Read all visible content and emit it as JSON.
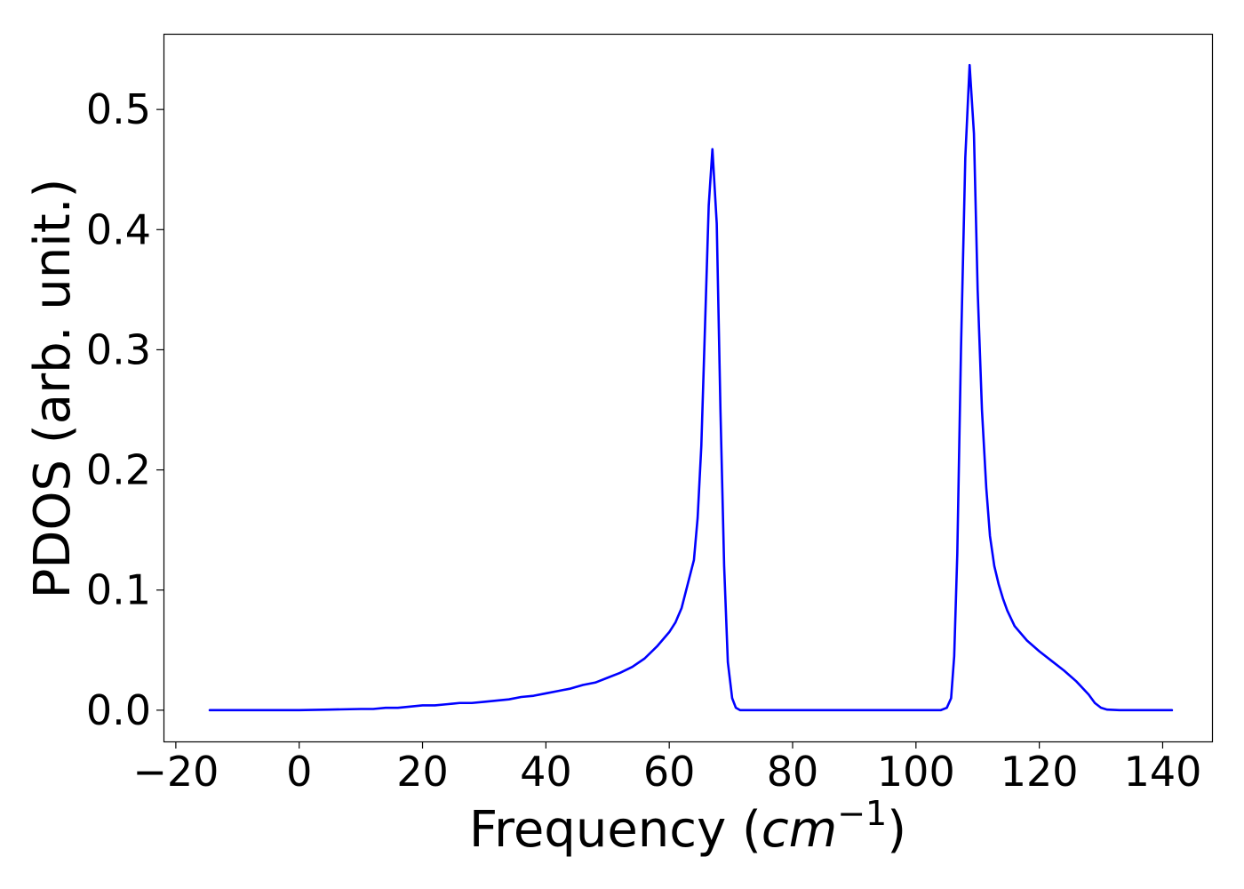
{
  "chart_data": {
    "type": "line",
    "title": "",
    "xlabel_prefix": "Frequency (",
    "xlabel_math": "cm",
    "xlabel_superscript": "−1",
    "xlabel_suffix": ")",
    "ylabel": "PDOS (arb. unit.)",
    "xlim": [
      -22,
      148
    ],
    "ylim": [
      -0.026,
      0.563
    ],
    "xticks": [
      -20,
      0,
      20,
      40,
      60,
      80,
      100,
      120,
      140
    ],
    "xtick_labels": [
      "−20",
      "0",
      "20",
      "40",
      "60",
      "80",
      "100",
      "120",
      "140"
    ],
    "yticks": [
      0.0,
      0.1,
      0.2,
      0.3,
      0.4,
      0.5
    ],
    "ytick_labels": [
      "0.0",
      "0.1",
      "0.2",
      "0.3",
      "0.4",
      "0.5"
    ],
    "grid": false,
    "legend": "none",
    "series": [
      {
        "color": "#0000ff",
        "x": [
          -14.5,
          -5,
          0,
          5,
          10,
          12,
          14,
          16,
          18,
          20,
          22,
          24,
          26,
          28,
          30,
          32,
          34,
          36,
          38,
          40,
          42,
          44,
          46,
          48,
          50,
          52,
          54,
          56,
          58,
          60,
          61,
          62,
          63,
          64,
          64.6,
          65.2,
          65.8,
          66.4,
          67.0,
          67.7,
          68.3,
          68.9,
          69.5,
          70.2,
          70.8,
          71.5,
          72.5,
          75,
          80,
          90,
          100,
          104,
          105,
          105.7,
          106.2,
          106.7,
          107.3,
          108.0,
          108.7,
          109.4,
          110.0,
          110.7,
          111.4,
          112.0,
          112.7,
          113.4,
          114.1,
          114.8,
          116,
          118,
          120,
          122,
          124,
          126,
          128,
          129,
          130,
          131,
          133,
          136,
          141.5
        ],
        "y": [
          0.0,
          0.0,
          0.0,
          0.0005,
          0.001,
          0.001,
          0.002,
          0.002,
          0.003,
          0.004,
          0.004,
          0.005,
          0.006,
          0.006,
          0.007,
          0.008,
          0.009,
          0.011,
          0.012,
          0.014,
          0.016,
          0.018,
          0.021,
          0.023,
          0.027,
          0.031,
          0.036,
          0.043,
          0.053,
          0.065,
          0.073,
          0.085,
          0.105,
          0.125,
          0.16,
          0.22,
          0.32,
          0.42,
          0.467,
          0.405,
          0.25,
          0.12,
          0.04,
          0.01,
          0.002,
          0.0,
          0.0,
          0.0,
          0.0,
          0.0,
          0.0,
          0.0,
          0.002,
          0.01,
          0.045,
          0.13,
          0.3,
          0.46,
          0.537,
          0.48,
          0.35,
          0.25,
          0.185,
          0.145,
          0.12,
          0.105,
          0.093,
          0.083,
          0.07,
          0.058,
          0.049,
          0.041,
          0.033,
          0.024,
          0.013,
          0.006,
          0.002,
          0.0005,
          0.0,
          0.0,
          0.0
        ]
      }
    ]
  }
}
